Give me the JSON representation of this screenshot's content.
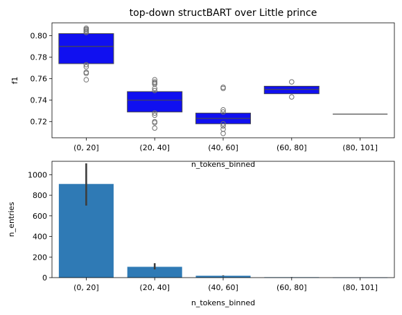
{
  "chart_data": [
    {
      "type": "box",
      "title": "top-down structBART over Little prince",
      "xlabel": "n_tokens_binned",
      "ylabel": "f1",
      "categories": [
        "(0, 20]",
        "(20, 40]",
        "(40, 60]",
        "(60, 80]",
        "(80, 101]"
      ],
      "ylim": [
        0.705,
        0.812
      ],
      "yticks": [
        0.72,
        0.74,
        0.76,
        0.78,
        0.8
      ],
      "ytick_labels": [
        "0.72",
        "0.74",
        "0.76",
        "0.78",
        "0.80"
      ],
      "box_color": "#1010f0",
      "boxes": [
        {
          "q1": 0.774,
          "median": 0.79,
          "q3": 0.802,
          "whisker_low": 0.774,
          "whisker_high": 0.802,
          "outliers": [
            0.759,
            0.765,
            0.766,
            0.771,
            0.773,
            0.803,
            0.804,
            0.805,
            0.806,
            0.807
          ]
        },
        {
          "q1": 0.729,
          "median": 0.74,
          "q3": 0.748,
          "whisker_low": 0.729,
          "whisker_high": 0.748,
          "outliers": [
            0.714,
            0.719,
            0.72,
            0.726,
            0.728,
            0.749,
            0.751,
            0.755,
            0.756,
            0.757,
            0.759
          ]
        },
        {
          "q1": 0.718,
          "median": 0.723,
          "q3": 0.728,
          "whisker_low": 0.718,
          "whisker_high": 0.728,
          "outliers": [
            0.709,
            0.713,
            0.716,
            0.718,
            0.729,
            0.731,
            0.751,
            0.752
          ]
        },
        {
          "q1": 0.746,
          "median": 0.75,
          "q3": 0.753,
          "whisker_low": 0.746,
          "whisker_high": 0.753,
          "outliers": [
            0.743,
            0.757
          ]
        },
        {
          "q1": 0.727,
          "median": 0.727,
          "q3": 0.727,
          "whisker_low": 0.727,
          "whisker_high": 0.727,
          "outliers": []
        }
      ]
    },
    {
      "type": "bar",
      "title": "",
      "xlabel": "n_tokens_binned",
      "ylabel": "n_entries",
      "categories": [
        "(0, 20]",
        "(20, 40]",
        "(40, 60]",
        "(60, 80]",
        "(80, 101]"
      ],
      "values": [
        910,
        105,
        18,
        4,
        2
      ],
      "error_low": [
        700,
        80,
        15,
        3,
        1
      ],
      "error_high": [
        1110,
        140,
        22,
        5,
        3
      ],
      "ylim": [
        0,
        1130
      ],
      "yticks": [
        0,
        200,
        400,
        600,
        800,
        1000
      ],
      "ytick_labels": [
        "0",
        "200",
        "400",
        "600",
        "800",
        "1000"
      ],
      "bar_color": "#2f7ab5"
    }
  ]
}
